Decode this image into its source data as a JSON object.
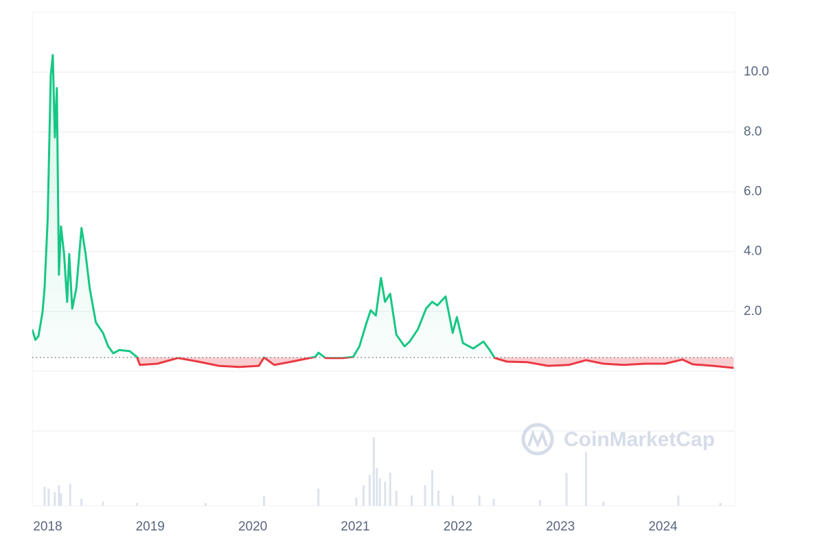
{
  "chart_data": {
    "type": "line",
    "x": [
      2017.85,
      2017.88,
      2017.91,
      2017.95,
      2017.97,
      2018.0,
      2018.03,
      2018.05,
      2018.07,
      2018.09,
      2018.11,
      2018.13,
      2018.16,
      2018.19,
      2018.21,
      2018.24,
      2018.28,
      2018.33,
      2018.37,
      2018.41,
      2018.47,
      2018.54,
      2018.59,
      2018.64,
      2018.7,
      2018.8,
      2018.87,
      2018.9,
      2019.07,
      2019.27,
      2019.47,
      2019.67,
      2019.87,
      2020.06,
      2020.11,
      2020.21,
      2020.41,
      2020.61,
      2020.64,
      2020.71,
      2020.88,
      2020.98,
      2021.04,
      2021.11,
      2021.15,
      2021.2,
      2021.25,
      2021.29,
      2021.34,
      2021.4,
      2021.48,
      2021.53,
      2021.61,
      2021.69,
      2021.75,
      2021.8,
      2021.88,
      2021.95,
      2021.99,
      2022.05,
      2022.15,
      2022.25,
      2022.31,
      2022.36,
      2022.48,
      2022.68,
      2022.88,
      2023.08,
      2023.25,
      2023.42,
      2023.62,
      2023.82,
      2024.02,
      2024.19,
      2024.29,
      2024.49,
      2024.69
    ],
    "values": [
      1.4,
      1.05,
      1.17,
      1.97,
      2.78,
      5.07,
      9.89,
      10.57,
      7.82,
      9.47,
      3.23,
      4.84,
      3.92,
      2.32,
      3.92,
      2.09,
      2.78,
      4.79,
      3.92,
      2.78,
      1.63,
      1.28,
      0.83,
      0.6,
      0.71,
      0.67,
      0.48,
      0.21,
      0.25,
      0.44,
      0.32,
      0.18,
      0.14,
      0.18,
      0.46,
      0.21,
      0.34,
      0.48,
      0.62,
      0.44,
      0.44,
      0.48,
      0.83,
      1.63,
      2.04,
      1.86,
      3.12,
      2.32,
      2.59,
      1.22,
      0.83,
      0.99,
      1.4,
      2.09,
      2.32,
      2.2,
      2.5,
      1.28,
      1.81,
      0.94,
      0.76,
      0.99,
      0.71,
      0.44,
      0.32,
      0.3,
      0.18,
      0.21,
      0.37,
      0.25,
      0.21,
      0.25,
      0.25,
      0.39,
      0.23,
      0.18,
      0.11
    ],
    "baseline": 0.46,
    "up_color": "#16c784",
    "down_color": "#ea3943",
    "xlim": [
      2017.85,
      2024.7
    ],
    "xticks": [
      2018,
      2019,
      2020,
      2021,
      2022,
      2023,
      2024
    ],
    "ylim": [
      -4.5,
      12
    ],
    "yticks": [
      {
        "value": 2,
        "label": "2.0"
      },
      {
        "value": 4,
        "label": "4.0"
      },
      {
        "value": 6,
        "label": "6.0"
      },
      {
        "value": 8,
        "label": "8.0"
      },
      {
        "value": 10,
        "label": "10.0"
      }
    ],
    "grid_lines": [
      -2,
      0,
      2,
      4,
      6,
      8,
      10
    ],
    "volume": {
      "color": "#dde3ec",
      "ylim": [
        0,
        100
      ],
      "x": [
        2017.97,
        2018.01,
        2018.07,
        2018.11,
        2018.13,
        2018.22,
        2018.33,
        2018.54,
        2018.87,
        2019.54,
        2020.11,
        2020.64,
        2021.01,
        2021.08,
        2021.14,
        2021.18,
        2021.21,
        2021.24,
        2021.29,
        2021.34,
        2021.4,
        2021.55,
        2021.68,
        2021.75,
        2021.81,
        2021.95,
        2022.21,
        2022.35,
        2022.8,
        2023.06,
        2023.25,
        2023.42,
        2024.15,
        2024.56
      ],
      "values": [
        28,
        25,
        20,
        30,
        18,
        32,
        10,
        6,
        4,
        4,
        14,
        25,
        12,
        30,
        45,
        100,
        55,
        40,
        35,
        48,
        22,
        15,
        30,
        52,
        22,
        15,
        15,
        10,
        8,
        48,
        78,
        6,
        15,
        4
      ]
    },
    "watermark": "CoinMarketCap"
  }
}
